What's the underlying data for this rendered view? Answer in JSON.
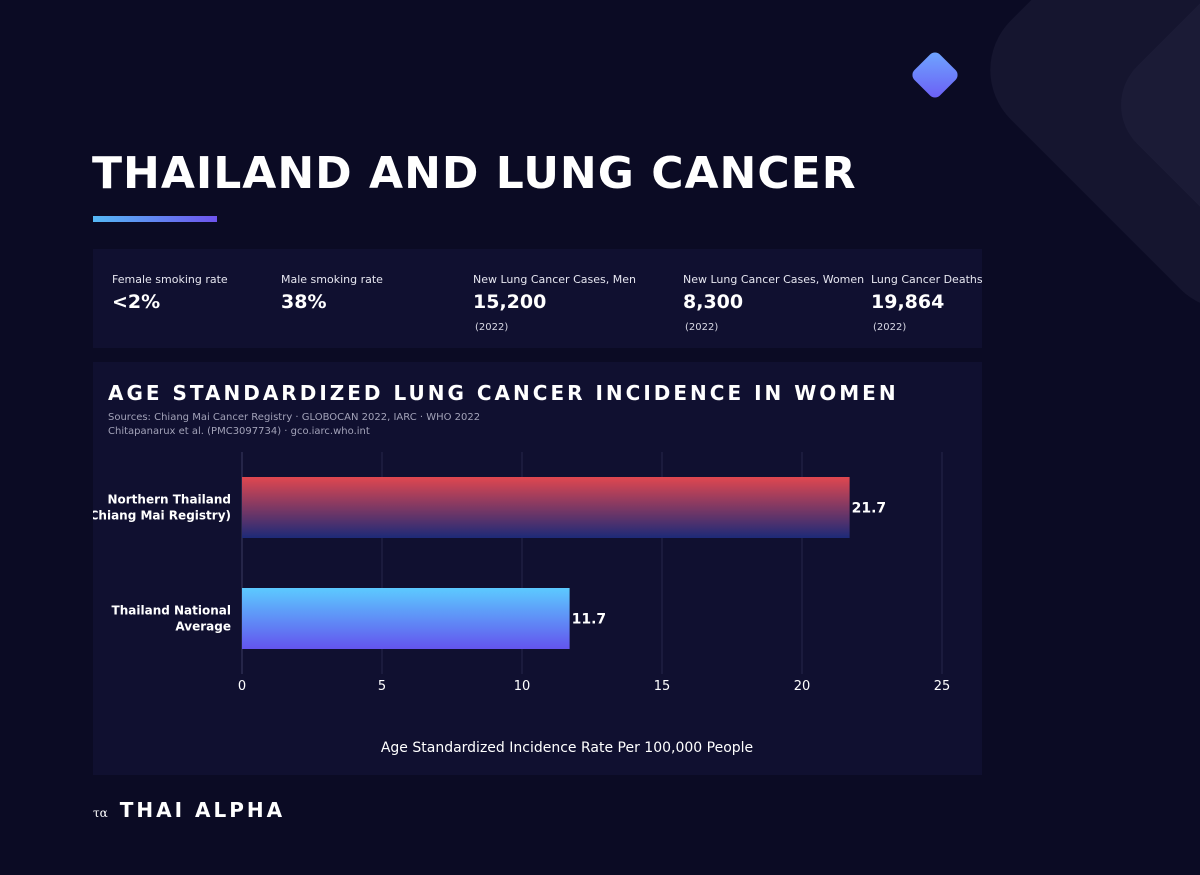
{
  "title": "THAILAND AND LUNG CANCER",
  "colors": {
    "background": "#0b0b24",
    "panel": "#101030",
    "accent_start": "#55b8f5",
    "accent_end": "#6e54ee",
    "bar1_top": "#e0474f",
    "bar1_bottom": "#1c2a78",
    "bar2_top": "#5ccaff",
    "bar2_bottom": "#6354ee"
  },
  "stats": [
    {
      "label": "Female smoking rate",
      "value": "<2%",
      "note": ""
    },
    {
      "label": "Male smoking rate",
      "value": "38%",
      "note": ""
    },
    {
      "label": "New Lung Cancer Cases, Men",
      "value": "15,200",
      "note": "(2022)"
    },
    {
      "label": "New Lung Cancer Cases, Women",
      "value": "8,300",
      "note": "(2022)"
    },
    {
      "label": "Lung Cancer Deaths",
      "value": "19,864",
      "note": "(2022)"
    }
  ],
  "chart_data": {
    "type": "bar",
    "orientation": "horizontal",
    "title": "AGE STANDARDIZED LUNG CANCER INCIDENCE IN WOMEN",
    "sources": [
      "Sources: Chiang Mai Cancer Registry · GLOBOCAN 2022, IARC · WHO 2022",
      "Chitapanarux et al. (PMC3097734) · gco.iarc.who.int"
    ],
    "categories": [
      [
        "Northern Thailand",
        "(Chiang Mai Registry)"
      ],
      [
        "Thailand National",
        "Average"
      ]
    ],
    "values": [
      21.7,
      11.7
    ],
    "value_labels": [
      "21.7",
      "11.7"
    ],
    "xlabel": "Age Standardized Incidence Rate Per 100,000 People",
    "ylabel": "",
    "xlim": [
      0,
      25
    ],
    "xticks": [
      0,
      5,
      10,
      15,
      20,
      25
    ],
    "grid": true,
    "legend": "none"
  },
  "footer": {
    "mark": "τα",
    "brand": "THAI ALPHA"
  }
}
